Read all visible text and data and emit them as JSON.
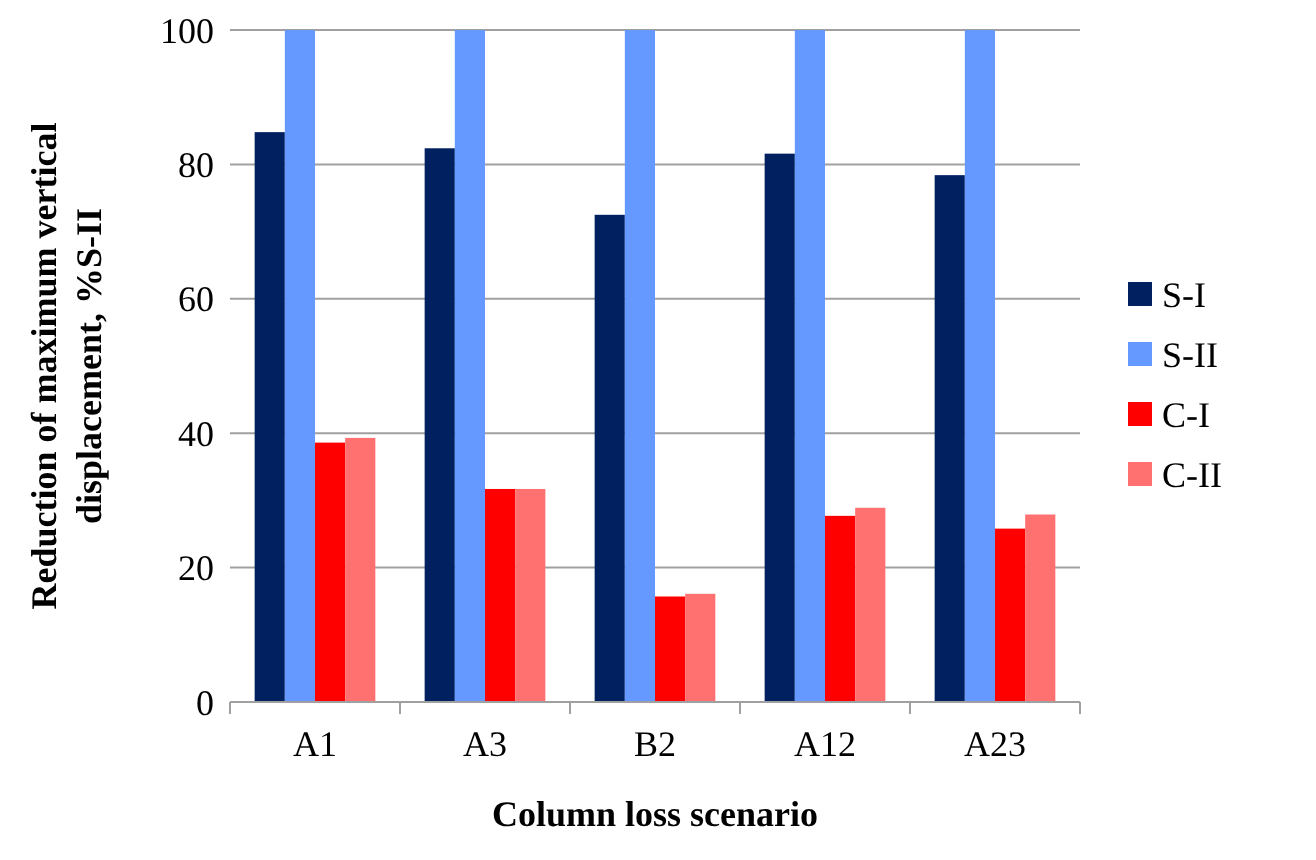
{
  "chart_data": {
    "type": "bar",
    "xlabel": "Column loss scenario",
    "ylabel": "Reduction of maximum vertical displacement, %S-II",
    "categories": [
      "A1",
      "A3",
      "B2",
      "A12",
      "A23"
    ],
    "series": [
      {
        "name": "S-I",
        "color": "#002060",
        "values": [
          84.8,
          82.4,
          72.5,
          81.6,
          78.4
        ]
      },
      {
        "name": "S-II",
        "color": "#6699ff",
        "values": [
          100,
          100,
          100,
          100,
          100
        ]
      },
      {
        "name": "C-I",
        "color": "#ff0000",
        "values": [
          38.6,
          31.7,
          15.7,
          27.7,
          25.8
        ]
      },
      {
        "name": "C-II",
        "color": "#ff7171",
        "values": [
          39.3,
          31.7,
          16.1,
          28.9,
          27.9
        ]
      }
    ],
    "ylim": [
      0,
      100
    ],
    "yticks": [
      0,
      20,
      40,
      60,
      80,
      100
    ],
    "grid": "y",
    "legend": "right"
  }
}
